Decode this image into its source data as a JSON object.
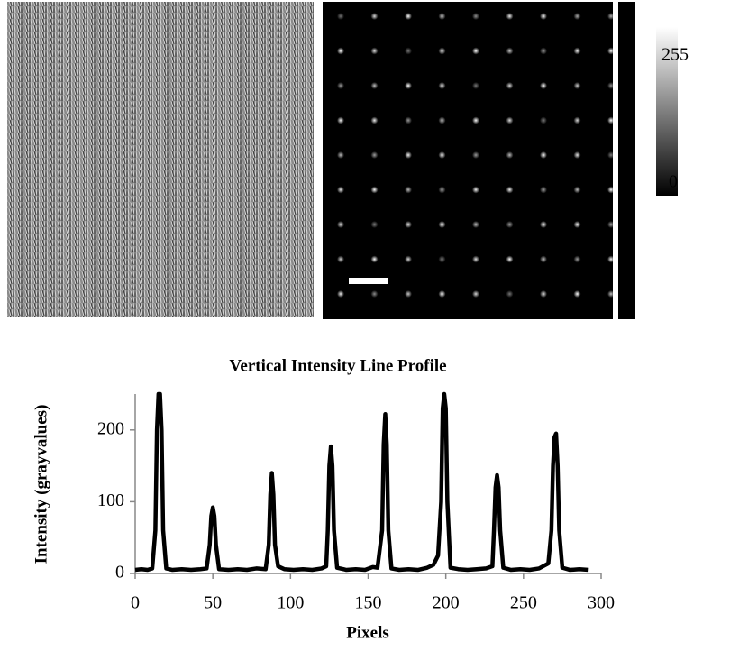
{
  "colorbar": {
    "max": 255,
    "min": 0
  },
  "chart_data": {
    "type": "line",
    "title": "Vertical Intensity Line Profile",
    "x_label": "Pixels",
    "y_label": "Intensity (grayvalues)",
    "x": [
      0,
      4,
      8,
      11,
      13,
      14,
      15,
      16,
      17,
      18,
      20,
      24,
      30,
      36,
      42,
      46,
      48,
      49,
      50,
      51,
      52,
      54,
      60,
      66,
      72,
      78,
      84,
      86,
      87,
      88,
      89,
      90,
      92,
      96,
      102,
      108,
      114,
      120,
      123,
      124,
      125,
      126,
      127,
      128,
      130,
      136,
      142,
      148,
      153,
      156,
      159,
      160,
      161,
      162,
      163,
      165,
      170,
      176,
      182,
      188,
      192,
      195,
      197,
      198,
      199,
      200,
      201,
      203,
      208,
      214,
      220,
      226,
      230,
      231,
      232,
      233,
      234,
      235,
      237,
      242,
      248,
      254,
      260,
      266,
      268,
      269,
      270,
      271,
      272,
      273,
      275,
      280,
      286,
      292
    ],
    "values": [
      5,
      6,
      5,
      7,
      60,
      200,
      250,
      250,
      200,
      60,
      7,
      5,
      6,
      5,
      6,
      7,
      40,
      80,
      92,
      80,
      40,
      6,
      5,
      6,
      5,
      7,
      6,
      40,
      110,
      140,
      110,
      40,
      10,
      6,
      5,
      6,
      5,
      7,
      10,
      60,
      150,
      177,
      150,
      60,
      8,
      5,
      6,
      5,
      9,
      8,
      60,
      180,
      222,
      180,
      60,
      7,
      5,
      6,
      5,
      8,
      12,
      25,
      100,
      230,
      250,
      230,
      100,
      8,
      6,
      5,
      6,
      7,
      10,
      60,
      120,
      137,
      120,
      60,
      8,
      5,
      6,
      5,
      7,
      14,
      60,
      150,
      190,
      195,
      150,
      60,
      8,
      5,
      6,
      5
    ],
    "color": "#000000",
    "xlim": [
      0,
      300
    ],
    "xticks": [
      0,
      50,
      100,
      150,
      200,
      250,
      300
    ],
    "ylim": [
      0,
      250
    ],
    "yticks": [
      0,
      100,
      200
    ]
  }
}
